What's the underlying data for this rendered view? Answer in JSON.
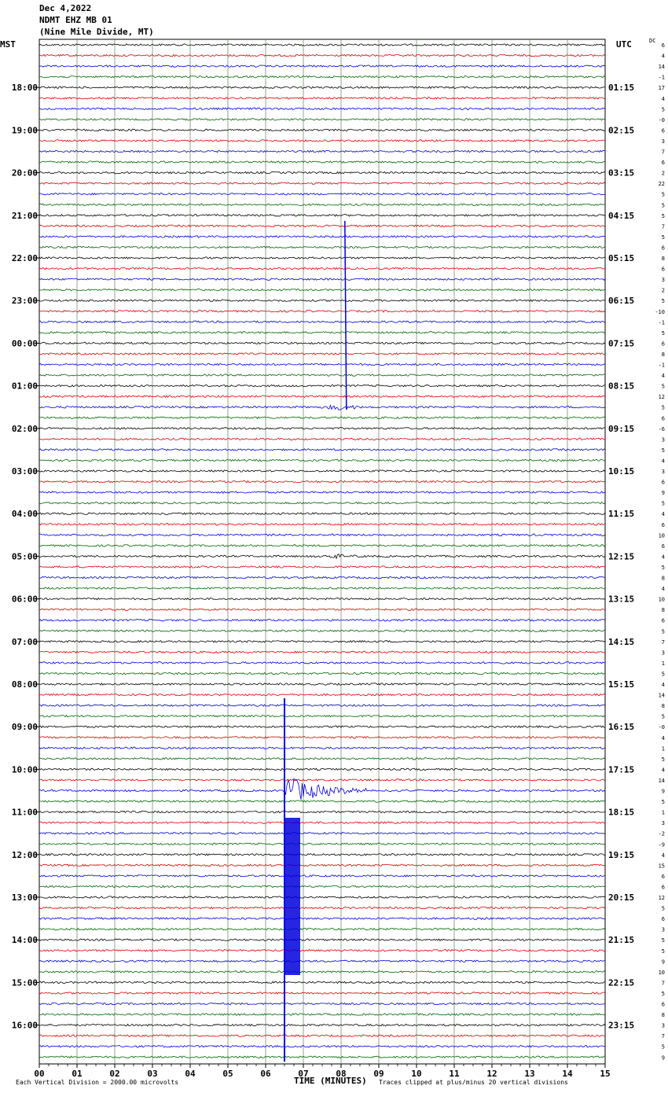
{
  "header": {
    "date": "Dec 4,2022",
    "station": "NDMT EHZ MB 01",
    "location": "(Nine Mile Divide, MT)"
  },
  "labels": {
    "left_tz": "MST",
    "right_tz": "UTC",
    "dc": "DC"
  },
  "chart_data": {
    "type": "line",
    "title": "",
    "xlabel": "TIME (MINUTES)",
    "xlim": [
      0,
      15
    ],
    "x_ticks": [
      "00",
      "01",
      "02",
      "03",
      "04",
      "05",
      "06",
      "07",
      "08",
      "09",
      "10",
      "11",
      "12",
      "13",
      "14",
      "15"
    ],
    "trace_count": 96,
    "trace_colors": [
      "#000000",
      "#dd0000",
      "#0000dd",
      "#006600"
    ],
    "left_times": [
      "18:00",
      "19:00",
      "20:00",
      "21:00",
      "22:00",
      "23:00",
      "00:00",
      "01:00",
      "02:00",
      "03:00",
      "04:00",
      "05:00",
      "06:00",
      "07:00",
      "08:00",
      "09:00",
      "10:00",
      "11:00",
      "12:00",
      "13:00",
      "14:00",
      "15:00",
      "16:00"
    ],
    "right_times": [
      "01:15",
      "02:15",
      "03:15",
      "04:15",
      "05:15",
      "06:15",
      "07:15",
      "08:15",
      "09:15",
      "10:15",
      "11:15",
      "12:15",
      "13:15",
      "14:15",
      "15:15",
      "16:15",
      "17:15",
      "18:15",
      "19:15",
      "20:15",
      "21:15",
      "22:15",
      "23:15"
    ],
    "dc_offsets": [
      "6",
      "4",
      "14",
      "-1",
      "17",
      "4",
      "5",
      "-0",
      "6",
      "3",
      "7",
      "6",
      "2",
      "22",
      "5",
      "5",
      "5",
      "7",
      "5",
      "6",
      "8",
      "6",
      "3",
      "2",
      "5",
      "-10",
      "-1",
      "5",
      "6",
      "8",
      "-1",
      "4",
      "5",
      "12",
      "5",
      "6",
      "-6",
      "3",
      "5",
      "4",
      "3",
      "6",
      "9",
      "5",
      "4",
      "6",
      "10",
      "6",
      "4",
      "5",
      "8",
      "4",
      "10",
      "8",
      "6",
      "5",
      "7",
      "3",
      "1",
      "5",
      "4",
      "14",
      "8",
      "5",
      "-0",
      "4",
      "1",
      "5",
      "4",
      "14",
      "9",
      "5",
      "1",
      "3",
      "-2",
      "-9",
      "4",
      "15",
      "6",
      "6",
      "12",
      "5",
      "6",
      "3",
      "5",
      "5",
      "9",
      "10",
      "7",
      "5",
      "6",
      "8",
      "3",
      "7",
      "5",
      "9"
    ],
    "events": [
      {
        "trace": 18,
        "minute": 8.1,
        "kind": "spike",
        "note": "glitch"
      },
      {
        "trace": 34,
        "minute": 8.0,
        "kind": "small"
      },
      {
        "trace": 48,
        "minute": 7.8,
        "kind": "small"
      },
      {
        "trace": 70,
        "minute": 6.5,
        "kind": "earthquake"
      }
    ]
  },
  "footer": {
    "scale": "Each Vertical Division = 2000.00 microvolts",
    "clip": "Traces clipped at plus/minus 20 vertical divisions"
  }
}
